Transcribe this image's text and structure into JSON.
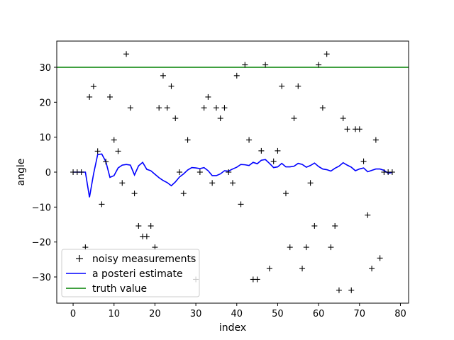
{
  "chart_data": {
    "type": "line",
    "title": "",
    "xlabel": "index",
    "ylabel": "angle",
    "xlim": [
      -4,
      82
    ],
    "ylim": [
      -37.5,
      37.5
    ],
    "xticks": [
      0,
      10,
      20,
      30,
      40,
      50,
      60,
      70,
      80
    ],
    "yticks": [
      -30,
      -20,
      -10,
      0,
      10,
      20,
      30
    ],
    "grid": false,
    "legend_position": "lower-left",
    "series": [
      {
        "name": "noisy measurements",
        "style": "marker-plus",
        "color": "#000000",
        "x": [
          0,
          1,
          2,
          3,
          4,
          5,
          6,
          7,
          8,
          9,
          10,
          11,
          12,
          13,
          14,
          15,
          16,
          17,
          18,
          19,
          20,
          21,
          22,
          23,
          24,
          25,
          26,
          27,
          28,
          29,
          30,
          31,
          32,
          33,
          34,
          35,
          36,
          37,
          38,
          39,
          40,
          41,
          42,
          43,
          44,
          45,
          46,
          47,
          48,
          49,
          50,
          51,
          52,
          53,
          54,
          55,
          56,
          57,
          58,
          59,
          60,
          61,
          62,
          63,
          64,
          65,
          66,
          67,
          68,
          69,
          70,
          71,
          72,
          73,
          74,
          75,
          76,
          77,
          78
        ],
        "y": [
          0,
          0,
          0,
          -21.5,
          21.5,
          24.5,
          6,
          -9.2,
          3,
          21.5,
          9.2,
          6,
          -3.1,
          33.8,
          18.4,
          -6.1,
          -15.4,
          -18.4,
          -18.4,
          -15.4,
          -21.5,
          18.4,
          27.6,
          18.4,
          24.6,
          15.4,
          0,
          -6.1,
          9.2,
          -24.6,
          -30.7,
          0,
          18.4,
          21.5,
          -3.1,
          18.4,
          15.4,
          18.4,
          0,
          -3.1,
          27.6,
          -9.2,
          30.7,
          9.2,
          -30.7,
          -30.7,
          6.1,
          30.7,
          -27.6,
          3.1,
          6.1,
          24.6,
          -6.1,
          -21.5,
          15.4,
          24.6,
          -27.6,
          -21.5,
          -3.1,
          -15.4,
          30.7,
          18.4,
          33.8,
          -21.5,
          -15.4,
          -33.8,
          15.4,
          12.3,
          -33.8,
          12.3,
          12.3,
          3.1,
          -12.3,
          -27.6,
          9.2,
          -24.6,
          0,
          0,
          0
        ]
      },
      {
        "name": "a posteri estimate",
        "style": "line",
        "color": "#0000ff",
        "x": [
          0,
          1,
          2,
          3,
          4,
          5,
          6,
          7,
          8,
          9,
          10,
          11,
          12,
          13,
          14,
          15,
          16,
          17,
          18,
          19,
          20,
          21,
          22,
          23,
          24,
          25,
          26,
          27,
          28,
          29,
          30,
          31,
          32,
          33,
          34,
          35,
          36,
          37,
          38,
          39,
          40,
          41,
          42,
          43,
          44,
          45,
          46,
          47,
          48,
          49,
          50,
          51,
          52,
          53,
          54,
          55,
          56,
          57,
          58,
          59,
          60,
          61,
          62,
          63,
          64,
          65,
          66,
          67,
          68,
          69,
          70,
          71,
          72,
          73,
          74,
          75,
          76,
          77,
          78
        ],
        "y": [
          0,
          0,
          0,
          0,
          -7.2,
          -0.5,
          5,
          5.2,
          3,
          -1.5,
          -1,
          1.2,
          2,
          2.2,
          2,
          -0.8,
          1.8,
          2.8,
          0.8,
          0.4,
          -0.6,
          -1.6,
          -2.4,
          -3,
          -3.9,
          -2.8,
          -1.4,
          -0.5,
          0.6,
          1.3,
          1.2,
          1,
          1.3,
          0.4,
          -1,
          -1,
          -0.5,
          0.4,
          0.3,
          0.9,
          1.4,
          2.2,
          2.1,
          1.9,
          2.8,
          2.4,
          3.4,
          3.6,
          2.5,
          1.3,
          1.5,
          2.5,
          1.5,
          1.5,
          1.7,
          2.5,
          2.2,
          1.4,
          1.9,
          2.6,
          1.6,
          0.9,
          0.7,
          0.3,
          1.1,
          1.7,
          2.7,
          2,
          1.4,
          0.4,
          0.9,
          1.2,
          0.1,
          0.5,
          0.9,
          0.9,
          0.5,
          -0.3,
          -0.1
        ]
      },
      {
        "name": "truth value",
        "style": "hline",
        "color": "#008000",
        "y": 30
      }
    ]
  }
}
